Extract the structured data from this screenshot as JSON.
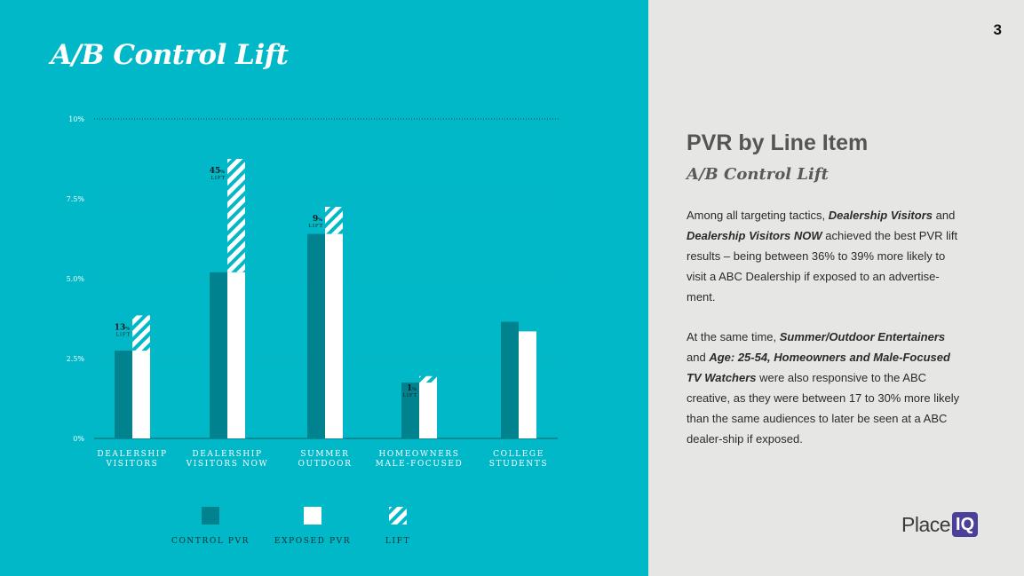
{
  "slide": {
    "title": "A/B Control Lift",
    "page_number": "3"
  },
  "panel": {
    "heading": "PVR by Line Item",
    "subheading": "A/B Control Lift",
    "paragraph1": [
      {
        "text": "Among all targeting tactics, ",
        "bold": false
      },
      {
        "text": "Dealership Visitors",
        "bold": true
      },
      {
        "text": " and ",
        "bold": false
      },
      {
        "text": "Dealership Visitors NOW",
        "bold": true
      },
      {
        "text": " achieved the best PVR lift results – being between 36% to 39% more likely to visit a ABC Dealership if exposed to an advertise-ment.",
        "bold": false
      }
    ],
    "paragraph2": [
      {
        "text": "At the same time, ",
        "bold": false
      },
      {
        "text": "Summer/Outdoor Entertainers",
        "bold": true
      },
      {
        "text": " and ",
        "bold": false
      },
      {
        "text": "Age: 25-54, Homeowners and Male-Focused TV Watchers",
        "bold": true
      },
      {
        "text": " were also responsive to the ABC creative, as they were between 17 to 30% more likely than the same audiences to later be seen at a ABC dealer-ship if exposed.",
        "bold": false
      }
    ]
  },
  "logo": {
    "text": "Place",
    "badge": "IQ"
  },
  "colors": {
    "left_background": "#00b8c8",
    "right_background": "#e6e6e5",
    "control_bar": "#00838f",
    "exposed_bar": "#ffffff",
    "lift_hatch": "#ffffff"
  },
  "chart_data": {
    "type": "bar",
    "categories": [
      [
        "DEALERSHIP",
        "VISITORS"
      ],
      [
        "DEALERSHIP",
        "VISITORS NOW"
      ],
      [
        "SUMMER",
        "OUTDOOR"
      ],
      [
        "HOMEOWNERS",
        "MALE-FOCUSED"
      ],
      [
        "COLLEGE",
        "STUDENTS"
      ]
    ],
    "series": [
      {
        "name": "CONTROL PVR",
        "values": [
          2.75,
          5.2,
          6.4,
          1.75,
          3.65
        ]
      },
      {
        "name": "EXPOSED PVR",
        "values": [
          2.75,
          5.2,
          6.4,
          1.75,
          3.35
        ]
      },
      {
        "name": "LIFT",
        "values": [
          1.1,
          3.55,
          0.85,
          0.2,
          0
        ]
      }
    ],
    "lift_labels": [
      "13%",
      "45%",
      "9%",
      "1%",
      ""
    ],
    "lift_word": "LIFT",
    "yticks": [
      "0%",
      "2.5%",
      "5.0%",
      "7.5%",
      "10%"
    ],
    "ylim": [
      0,
      10
    ],
    "grid": true,
    "legend_position": "bottom"
  }
}
